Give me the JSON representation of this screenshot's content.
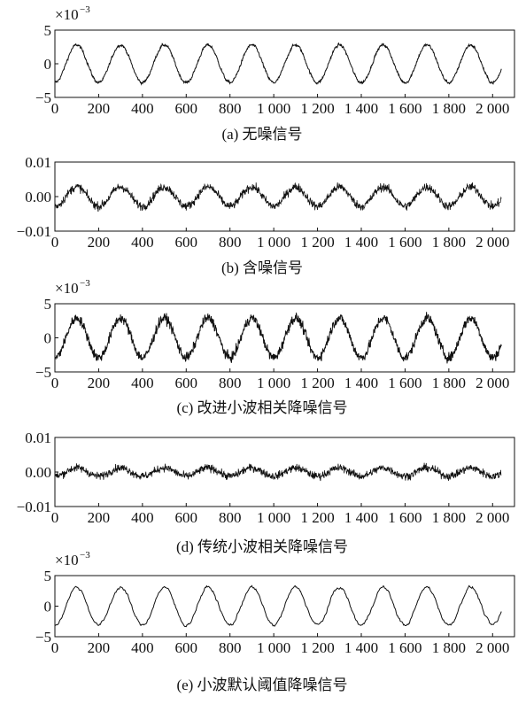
{
  "chart_data": [
    {
      "type": "line",
      "caption": "(a)  无噪信号",
      "multiplier": "×10",
      "multiplier_exp": "−3",
      "ylim": [
        -5,
        5
      ],
      "yticks": [
        "5",
        "0",
        "−5"
      ],
      "xlim": [
        0,
        2100
      ],
      "xticks": [
        "0",
        "200",
        "400",
        "600",
        "800",
        "1 000",
        "1 200",
        "1 400",
        "1 600",
        "1 800",
        "2 000"
      ],
      "series": [
        {
          "period": 200,
          "phase": 50,
          "amplitude": 2.8,
          "noise": 0.35,
          "end": 2040,
          "style": "clean"
        }
      ]
    },
    {
      "type": "line",
      "caption": "(b)  含噪信号",
      "multiplier": "",
      "multiplier_exp": "",
      "ylim": [
        -0.01,
        0.01
      ],
      "yticks": [
        "0.01",
        "0.00",
        "−0.01"
      ],
      "xlim": [
        0,
        2100
      ],
      "xticks": [
        "0",
        "200",
        "400",
        "600",
        "800",
        "1 000",
        "1 200",
        "1 400",
        "1 600",
        "1 800",
        "2 000"
      ],
      "series": [
        {
          "period": 200,
          "phase": 50,
          "amplitude": 0.0028,
          "noise": 0.0012,
          "end": 2040,
          "style": "noisy"
        }
      ]
    },
    {
      "type": "line",
      "caption": "(c)  改进小波相关降噪信号",
      "multiplier": "×10",
      "multiplier_exp": "−3",
      "ylim": [
        -5,
        5
      ],
      "yticks": [
        "5",
        "0",
        "−5"
      ],
      "xlim": [
        0,
        2100
      ],
      "xticks": [
        "0",
        "200",
        "400",
        "600",
        "800",
        "1 000",
        "1 200",
        "1 400",
        "1 600",
        "1 800",
        "2 000"
      ],
      "series": [
        {
          "period": 200,
          "phase": 50,
          "amplitude": 2.9,
          "noise": 0.7,
          "end": 2040,
          "style": "medium"
        }
      ]
    },
    {
      "type": "line",
      "caption": "(d)  传统小波相关降噪信号",
      "multiplier": "",
      "multiplier_exp": "",
      "ylim": [
        -0.01,
        0.01
      ],
      "yticks": [
        "0.01",
        "0.00",
        "−0.01"
      ],
      "xlim": [
        0,
        2100
      ],
      "xticks": [
        "0",
        "200",
        "400",
        "600",
        "800",
        "1 000",
        "1 200",
        "1 400",
        "1 600",
        "1 800",
        "2 000"
      ],
      "series": [
        {
          "period": 200,
          "phase": 50,
          "amplitude": 0.0012,
          "noise": 0.0011,
          "end": 2040,
          "style": "noisy"
        }
      ]
    },
    {
      "type": "line",
      "caption": "(e)  小波默认阈值降噪信号",
      "multiplier": "×10",
      "multiplier_exp": "−3",
      "ylim": [
        -5,
        5
      ],
      "yticks": [
        "5",
        "0",
        "−5"
      ],
      "xlim": [
        0,
        2100
      ],
      "xticks": [
        "0",
        "200",
        "400",
        "600",
        "800",
        "1 000",
        "1 200",
        "1 400",
        "1 600",
        "1 800",
        "2 000"
      ],
      "series": [
        {
          "period": 200,
          "phase": 50,
          "amplitude": 3.1,
          "noise": 0.25,
          "end": 2040,
          "style": "smooth"
        }
      ]
    }
  ]
}
